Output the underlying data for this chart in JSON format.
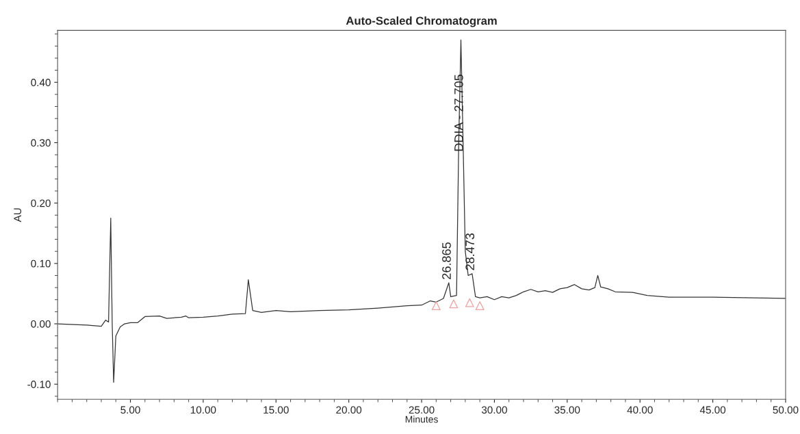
{
  "chart_data": {
    "type": "line",
    "title": "Auto-Scaled Chromatogram",
    "xlabel": "Minutes",
    "ylabel": "AU",
    "xlim": [
      0,
      50
    ],
    "ylim": [
      -0.125,
      0.486
    ],
    "xticks": [
      {
        "value": 5,
        "label": "5.00"
      },
      {
        "value": 10,
        "label": "10.00"
      },
      {
        "value": 15,
        "label": "15.00"
      },
      {
        "value": 20,
        "label": "20.00"
      },
      {
        "value": 25,
        "label": "25.00"
      },
      {
        "value": 30,
        "label": "30.00"
      },
      {
        "value": 35,
        "label": "35.00"
      },
      {
        "value": 40,
        "label": "40.00"
      },
      {
        "value": 45,
        "label": "45.00"
      },
      {
        "value": 50,
        "label": "50.00"
      }
    ],
    "yticks": [
      {
        "value": -0.1,
        "label": "-0.10"
      },
      {
        "value": 0,
        "label": "0.00"
      },
      {
        "value": 0.1,
        "label": "0.10"
      },
      {
        "value": 0.2,
        "label": "0.20"
      },
      {
        "value": 0.3,
        "label": "0.30"
      },
      {
        "value": 0.4,
        "label": "0.40"
      }
    ],
    "grid": false,
    "legend": false,
    "marker": "none",
    "line_style": "solid",
    "series": [
      {
        "color": "#333333",
        "x": [
          0,
          2,
          3,
          3.3,
          3.5,
          3.65,
          3.75,
          3.85,
          4.0,
          4.3,
          4.6,
          5.0,
          5.5,
          6.0,
          7.0,
          7.5,
          8.5,
          8.8,
          9.0,
          10.0,
          11,
          12,
          12.9,
          13.1,
          13.4,
          14.0,
          15,
          16,
          18,
          20,
          22,
          24,
          25,
          25.6,
          26.0,
          26.5,
          26.87,
          27.0,
          27.4,
          27.55,
          27.7,
          27.85,
          28.0,
          28.2,
          28.47,
          28.7,
          29.0,
          29.5,
          30,
          30.5,
          31,
          31.5,
          32,
          32.5,
          33,
          33.5,
          34,
          34.5,
          35,
          35.5,
          36,
          36.5,
          36.9,
          37.1,
          37.3,
          37.8,
          38.3,
          39.5,
          40.5,
          42,
          45,
          50
        ],
        "values": [
          0.0,
          -0.002,
          -0.004,
          0.006,
          0.003,
          0.175,
          0.0,
          -0.097,
          -0.02,
          -0.005,
          0.0,
          0.002,
          0.002,
          0.012,
          0.013,
          0.009,
          0.011,
          0.013,
          0.01,
          0.011,
          0.013,
          0.016,
          0.017,
          0.073,
          0.022,
          0.019,
          0.022,
          0.02,
          0.022,
          0.023,
          0.026,
          0.03,
          0.031,
          0.038,
          0.036,
          0.042,
          0.068,
          0.045,
          0.047,
          0.3,
          0.47,
          0.3,
          0.12,
          0.08,
          0.083,
          0.045,
          0.043,
          0.045,
          0.04,
          0.045,
          0.043,
          0.047,
          0.053,
          0.057,
          0.053,
          0.055,
          0.052,
          0.058,
          0.06,
          0.065,
          0.058,
          0.056,
          0.06,
          0.08,
          0.061,
          0.058,
          0.053,
          0.052,
          0.047,
          0.044,
          0.044,
          0.042
        ]
      },
      {
        "type": "scatter",
        "color": "#f0a0a0",
        "marker": "triangle",
        "x": [
          26.0,
          27.2,
          28.3,
          29.0
        ],
        "values": [
          0.03,
          0.033,
          0.035,
          0.03
        ]
      }
    ],
    "annotations": [
      {
        "text": "26.865",
        "x": 26.865,
        "y": 0.068
      },
      {
        "text": "DDIA - 27.705",
        "x": 27.705,
        "y": 0.28
      },
      {
        "text": "28.473",
        "x": 28.473,
        "y": 0.083
      }
    ]
  }
}
